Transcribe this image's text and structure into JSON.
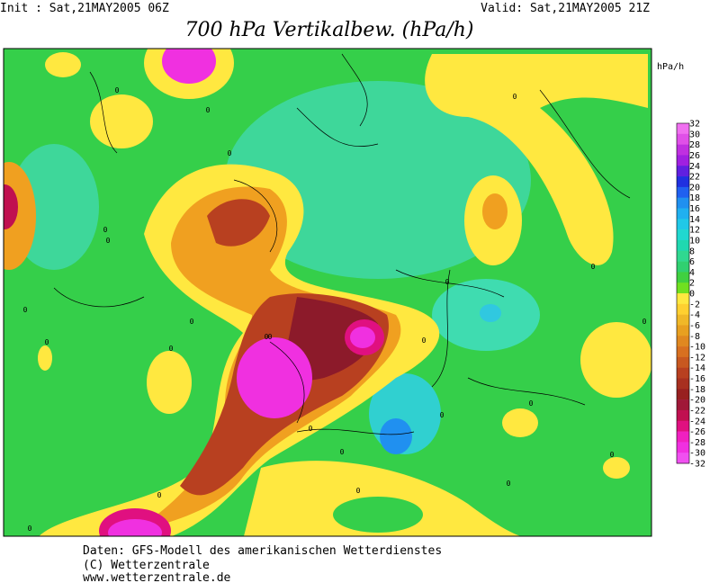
{
  "header": {
    "init": "Init : Sat,21MAY2005 06Z",
    "valid": "Valid: Sat,21MAY2005 21Z",
    "title": "700 hPa Vertikalbew. (hPa/h)"
  },
  "colorbar": {
    "unit": "hPa/h",
    "labels": [
      "32",
      "30",
      "28",
      "26",
      "24",
      "22",
      "20",
      "18",
      "16",
      "14",
      "12",
      "10",
      "8",
      "6",
      "4",
      "2",
      "0",
      "-2",
      "-4",
      "-6",
      "-8",
      "-10",
      "-12",
      "-14",
      "-16",
      "-18",
      "-20",
      "-22",
      "-24",
      "-26",
      "-28",
      "-30",
      "-32"
    ],
    "colors": [
      "#f070f0",
      "#e050e8",
      "#c030e0",
      "#a020e0",
      "#6020e0",
      "#2030e0",
      "#2060f0",
      "#2090f0",
      "#20b0f0",
      "#20c8e8",
      "#20d8d0",
      "#20d8b0",
      "#30d890",
      "#30d070",
      "#40d040",
      "#70e020",
      "#ffe840",
      "#ffd030",
      "#f0b828",
      "#e8a020",
      "#e08820",
      "#d87020",
      "#c85820",
      "#b84020",
      "#a83020",
      "#982020",
      "#a01838",
      "#c01050",
      "#e01080",
      "#f020c0",
      "#f030e0",
      "#f050f0"
    ]
  },
  "contour_labels": [
    "0",
    "0",
    "0",
    "0",
    "0",
    "0",
    "0",
    "0",
    "0",
    "0",
    "0",
    "0",
    "0",
    "0",
    "0",
    "0",
    "0",
    "0",
    "0",
    "0",
    "0",
    "0",
    "0",
    "0",
    "0"
  ],
  "footer": [
    "Daten: GFS-Modell des amerikanischen Wetterdienstes",
    "(C) Wetterzentrale",
    "www.wetterzentrale.de"
  ]
}
